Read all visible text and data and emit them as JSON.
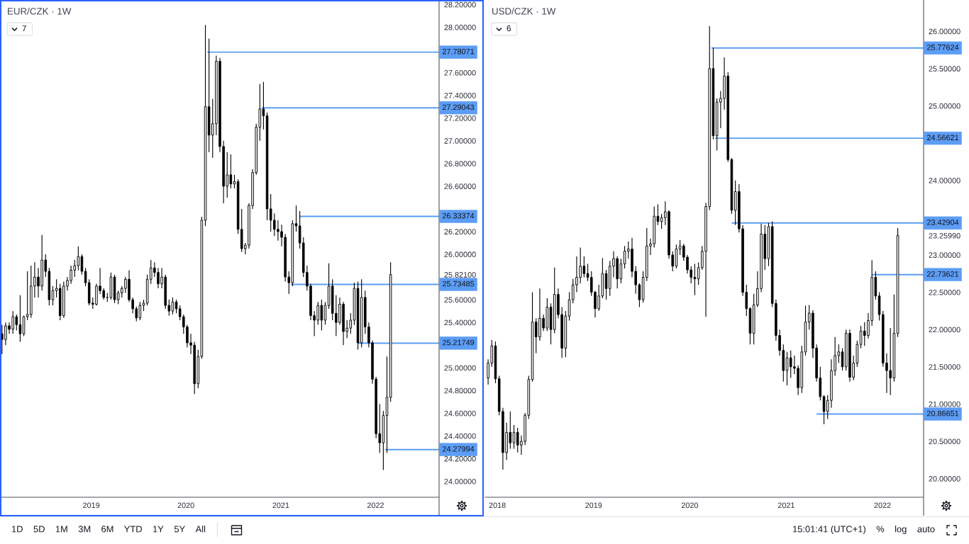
{
  "chart_data": [
    {
      "type": "candlestick",
      "title": "EUR/CZK · 1W",
      "annotations": [
        "7"
      ],
      "color": "#000000",
      "x": [
        "2018-01-22",
        "2018-02-05",
        "2018-02-19",
        "2018-03-05",
        "2018-03-19",
        "2018-04-02",
        "2018-04-16",
        "2018-04-30",
        "2018-05-14",
        "2018-05-28",
        "2018-06-11",
        "2018-06-25",
        "2018-07-09",
        "2018-07-23",
        "2018-08-06",
        "2018-08-20",
        "2018-09-03",
        "2018-09-17",
        "2018-10-01",
        "2018-10-15",
        "2018-10-29",
        "2018-11-12",
        "2018-11-26",
        "2018-12-10",
        "2018-12-24",
        "2019-01-07",
        "2019-01-21",
        "2019-02-04",
        "2019-02-18",
        "2019-03-04",
        "2019-03-18",
        "2019-04-01",
        "2019-04-15",
        "2019-04-29",
        "2019-05-13",
        "2019-05-27",
        "2019-06-10",
        "2019-06-24",
        "2019-07-08",
        "2019-07-22",
        "2019-08-05",
        "2019-08-19",
        "2019-09-02",
        "2019-09-16",
        "2019-09-30",
        "2019-10-14",
        "2019-10-28",
        "2019-11-11",
        "2019-11-25",
        "2019-12-09",
        "2019-12-23",
        "2020-01-06",
        "2020-01-20",
        "2020-02-03",
        "2020-02-17",
        "2020-03-02",
        "2020-03-16",
        "2020-03-30",
        "2020-04-13",
        "2020-04-27",
        "2020-05-11",
        "2020-05-25",
        "2020-06-08",
        "2020-06-22",
        "2020-07-06",
        "2020-07-20",
        "2020-08-03",
        "2020-08-17",
        "2020-08-31",
        "2020-09-14",
        "2020-09-28",
        "2020-10-12",
        "2020-10-26",
        "2020-11-09",
        "2020-11-23",
        "2020-12-07",
        "2020-12-21",
        "2021-01-04",
        "2021-01-18",
        "2021-02-01",
        "2021-02-15",
        "2021-03-01",
        "2021-03-15",
        "2021-03-29",
        "2021-04-12",
        "2021-04-26",
        "2021-05-10",
        "2021-05-24",
        "2021-06-07",
        "2021-06-21",
        "2021-07-05",
        "2021-07-19",
        "2021-08-02",
        "2021-08-16",
        "2021-08-30",
        "2021-09-13",
        "2021-09-27",
        "2021-10-11",
        "2021-10-25",
        "2021-11-08",
        "2021-11-22",
        "2021-12-06",
        "2021-12-20",
        "2022-01-03",
        "2022-01-17",
        "2022-01-31",
        "2022-02-14",
        "2022-02-28"
      ],
      "ohlc": [
        [
          25.3,
          25.38,
          25.12,
          25.25
        ],
        [
          25.25,
          25.4,
          25.2,
          25.37
        ],
        [
          25.37,
          25.4,
          25.3,
          25.34
        ],
        [
          25.34,
          25.5,
          25.3,
          25.45
        ],
        [
          25.45,
          25.47,
          25.33,
          25.38
        ],
        [
          25.38,
          25.64,
          25.23,
          25.3
        ],
        [
          25.3,
          25.46,
          25.28,
          25.45
        ],
        [
          25.45,
          25.85,
          25.42,
          25.47
        ],
        [
          25.47,
          25.9,
          25.44,
          25.72
        ],
        [
          25.72,
          25.93,
          25.62,
          25.8
        ],
        [
          25.8,
          25.88,
          25.62,
          25.72
        ],
        [
          25.72,
          26.17,
          25.68,
          25.95
        ],
        [
          25.95,
          26.0,
          25.8,
          25.85
        ],
        [
          25.85,
          25.88,
          25.55,
          25.6
        ],
        [
          25.6,
          25.72,
          25.55,
          25.68
        ],
        [
          25.68,
          25.78,
          25.62,
          25.7
        ],
        [
          25.7,
          25.74,
          25.42,
          25.46
        ],
        [
          25.46,
          25.76,
          25.44,
          25.72
        ],
        [
          25.72,
          25.8,
          25.68,
          25.77
        ],
        [
          25.77,
          25.9,
          25.74,
          25.86
        ],
        [
          25.86,
          25.95,
          25.8,
          25.9
        ],
        [
          25.9,
          26.07,
          25.86,
          25.98
        ],
        [
          25.98,
          26.0,
          25.82,
          25.85
        ],
        [
          25.85,
          25.88,
          25.72,
          25.75
        ],
        [
          25.75,
          25.78,
          25.55,
          25.57
        ],
        [
          25.57,
          25.62,
          25.52,
          25.56
        ],
        [
          25.56,
          25.74,
          25.55,
          25.72
        ],
        [
          25.72,
          25.88,
          25.65,
          25.68
        ],
        [
          25.68,
          25.7,
          25.6,
          25.62
        ],
        [
          25.62,
          25.66,
          25.58,
          25.62
        ],
        [
          25.62,
          25.84,
          25.6,
          25.8
        ],
        [
          25.8,
          25.82,
          25.57,
          25.6
        ],
        [
          25.6,
          25.68,
          25.56,
          25.66
        ],
        [
          25.66,
          25.72,
          25.62,
          25.7
        ],
        [
          25.7,
          25.8,
          25.66,
          25.78
        ],
        [
          25.78,
          25.86,
          25.58,
          25.6
        ],
        [
          25.6,
          25.62,
          25.48,
          25.52
        ],
        [
          25.52,
          25.54,
          25.41,
          25.44
        ],
        [
          25.44,
          25.58,
          25.42,
          25.55
        ],
        [
          25.55,
          25.6,
          25.5,
          25.57
        ],
        [
          25.57,
          25.82,
          25.55,
          25.78
        ],
        [
          25.78,
          25.95,
          25.74,
          25.88
        ],
        [
          25.88,
          25.93,
          25.8,
          25.84
        ],
        [
          25.84,
          25.88,
          25.7,
          25.74
        ],
        [
          25.74,
          25.88,
          25.7,
          25.8
        ],
        [
          25.8,
          25.82,
          25.52,
          25.55
        ],
        [
          25.55,
          25.6,
          25.46,
          25.5
        ],
        [
          25.5,
          25.62,
          25.47,
          25.58
        ],
        [
          25.58,
          25.6,
          25.48,
          25.52
        ],
        [
          25.52,
          25.55,
          25.42,
          25.45
        ],
        [
          25.45,
          25.47,
          25.3,
          25.36
        ],
        [
          25.36,
          25.38,
          25.18,
          25.22
        ],
        [
          25.22,
          25.3,
          25.12,
          25.2
        ],
        [
          25.2,
          25.23,
          24.77,
          24.86
        ],
        [
          24.86,
          25.16,
          24.82,
          25.1
        ],
        [
          25.1,
          26.33,
          25.08,
          26.3
        ],
        [
          26.3,
          28.02,
          26.25,
          27.3
        ],
        [
          27.3,
          27.9,
          26.9,
          27.05
        ],
        [
          27.05,
          27.37,
          26.85,
          27.15
        ],
        [
          27.15,
          27.75,
          27.05,
          27.7
        ],
        [
          27.7,
          27.73,
          26.9,
          26.95
        ],
        [
          26.95,
          27.0,
          26.45,
          26.6
        ],
        [
          26.6,
          26.9,
          26.5,
          26.7
        ],
        [
          26.7,
          26.88,
          26.58,
          26.62
        ],
        [
          26.62,
          26.7,
          26.58,
          26.64
        ],
        [
          26.64,
          26.66,
          26.18,
          26.22
        ],
        [
          26.22,
          26.4,
          26.02,
          26.05
        ],
        [
          26.05,
          26.1,
          26.0,
          26.08
        ],
        [
          26.08,
          26.45,
          26.05,
          26.43
        ],
        [
          26.43,
          26.75,
          26.4,
          26.72
        ],
        [
          26.72,
          27.15,
          26.7,
          27.12
        ],
        [
          27.12,
          27.5,
          27.0,
          27.28
        ],
        [
          27.28,
          27.52,
          27.1,
          27.22
        ],
        [
          27.22,
          27.25,
          26.3,
          26.4
        ],
        [
          26.4,
          26.53,
          26.2,
          26.3
        ],
        [
          26.3,
          26.36,
          26.16,
          26.22
        ],
        [
          26.22,
          26.3,
          26.12,
          26.2
        ],
        [
          26.2,
          26.26,
          26.07,
          26.15
        ],
        [
          26.15,
          26.18,
          25.76,
          25.8
        ],
        [
          25.8,
          25.85,
          25.65,
          25.75
        ],
        [
          25.75,
          26.3,
          25.72,
          26.27
        ],
        [
          26.27,
          26.43,
          26.2,
          26.25
        ],
        [
          26.25,
          26.38,
          26.05,
          26.1
        ],
        [
          26.1,
          26.15,
          25.8,
          25.84
        ],
        [
          25.84,
          25.9,
          25.68,
          25.72
        ],
        [
          25.72,
          25.74,
          25.42,
          25.46
        ],
        [
          25.46,
          25.5,
          25.28,
          25.42
        ],
        [
          25.42,
          25.58,
          25.38,
          25.55
        ],
        [
          25.55,
          25.6,
          25.33,
          25.42
        ],
        [
          25.42,
          25.58,
          25.38,
          25.55
        ],
        [
          25.55,
          25.92,
          25.52,
          25.72
        ],
        [
          25.72,
          25.78,
          25.42,
          25.48
        ],
        [
          25.48,
          25.64,
          25.28,
          25.4
        ],
        [
          25.4,
          25.62,
          25.38,
          25.56
        ],
        [
          25.56,
          25.58,
          25.2,
          25.32
        ],
        [
          25.32,
          25.42,
          25.26,
          25.35
        ],
        [
          25.35,
          25.48,
          25.3,
          25.42
        ],
        [
          25.42,
          25.75,
          25.38,
          25.7
        ],
        [
          25.7,
          25.76,
          25.16,
          25.22
        ],
        [
          25.22,
          25.78,
          25.18,
          25.62
        ],
        [
          25.62,
          25.68,
          25.3,
          25.36
        ],
        [
          25.36,
          25.4,
          25.18,
          25.22
        ],
        [
          25.22,
          25.24,
          24.86,
          24.9
        ],
        [
          24.9,
          24.92,
          24.38,
          24.42
        ],
        [
          24.42,
          24.68,
          24.25,
          24.34
        ],
        [
          24.34,
          24.62,
          24.1,
          24.58
        ],
        [
          24.58,
          25.1,
          24.25,
          24.74
        ],
        [
          24.74,
          25.93,
          24.7,
          25.821
        ]
      ],
      "series": [
        {
          "type": "line",
          "x": [
            "2020-03-23",
            "2022-09-03"
          ],
          "values": [
            27.78071,
            27.78071
          ],
          "value_labels": [
            null,
            "27.78071"
          ],
          "color": "#5c9df5"
        },
        {
          "type": "line",
          "x": [
            "2020-10-19",
            "2022-09-03"
          ],
          "values": [
            27.29043,
            27.29043
          ],
          "value_labels": [
            null,
            "27.29043"
          ],
          "color": "#5c9df5"
        },
        {
          "type": "line",
          "x": [
            "2021-03-15",
            "2022-09-03"
          ],
          "values": [
            26.33374,
            26.33374
          ],
          "value_labels": [
            null,
            "26.33374"
          ],
          "color": "#5c9df5"
        },
        {
          "type": "line",
          "x": [
            "2021-02-08",
            "2022-09-03"
          ],
          "values": [
            25.73485,
            25.73485
          ],
          "value_labels": [
            null,
            "25.73485"
          ],
          "color": "#5c9df5"
        },
        {
          "type": "line",
          "x": [
            "2021-10-25",
            "2022-09-03"
          ],
          "values": [
            25.21749,
            25.21749
          ],
          "value_labels": [
            null,
            "25.21749"
          ],
          "color": "#5c9df5"
        },
        {
          "type": "line",
          "x": [
            "2022-02-07",
            "2022-09-03"
          ],
          "values": [
            24.27994,
            24.27994
          ],
          "value_labels": [
            null,
            "24.27994"
          ],
          "color": "#5c9df5"
        }
      ],
      "xlim": [
        "2018-01-17",
        "2022-09-03"
      ],
      "xticks": [
        "2019",
        "2020",
        "2021",
        "2022"
      ],
      "ylim": [
        23.86,
        28.24
      ],
      "yticks": [
        {
          "value": 24,
          "label": "24.00000"
        },
        {
          "value": 24.2,
          "label": "24.20000"
        },
        {
          "value": 24.4,
          "label": "24.40000"
        },
        {
          "value": 24.6,
          "label": "24.60000"
        },
        {
          "value": 24.8,
          "label": "24.80000"
        },
        {
          "value": 25,
          "label": "25.00000"
        },
        {
          "value": 25.4,
          "label": "25.40000"
        },
        {
          "value": 25.6,
          "label": "25.60000"
        },
        {
          "value": 25.821,
          "label": "25.82100"
        },
        {
          "value": 26,
          "label": "26.00000"
        },
        {
          "value": 26.2,
          "label": "26.20000"
        },
        {
          "value": 26.6,
          "label": "26.60000"
        },
        {
          "value": 26.8,
          "label": "26.80000"
        },
        {
          "value": 27,
          "label": "27.00000"
        },
        {
          "value": 27.2,
          "label": "27.20000"
        },
        {
          "value": 27.4,
          "label": "27.40000"
        },
        {
          "value": 27.6,
          "label": "27.60000"
        },
        {
          "value": 28,
          "label": "28.00000"
        },
        {
          "value": 28.2,
          "label": "28.20000"
        }
      ]
    },
    {
      "type": "candlestick",
      "title": "USD/CZK · 1W",
      "annotations": [
        "6"
      ],
      "color": "#000000",
      "x": [
        "2017-11-27",
        "2017-12-11",
        "2017-12-25",
        "2018-01-08",
        "2018-01-22",
        "2018-02-05",
        "2018-02-19",
        "2018-03-05",
        "2018-03-19",
        "2018-04-02",
        "2018-04-16",
        "2018-04-30",
        "2018-05-14",
        "2018-05-28",
        "2018-06-11",
        "2018-06-25",
        "2018-07-09",
        "2018-07-23",
        "2018-08-06",
        "2018-08-20",
        "2018-09-03",
        "2018-09-17",
        "2018-10-01",
        "2018-10-15",
        "2018-10-29",
        "2018-11-12",
        "2018-11-26",
        "2018-12-10",
        "2018-12-24",
        "2019-01-07",
        "2019-01-21",
        "2019-02-04",
        "2019-02-18",
        "2019-03-04",
        "2019-03-18",
        "2019-04-01",
        "2019-04-15",
        "2019-04-29",
        "2019-05-13",
        "2019-05-27",
        "2019-06-10",
        "2019-06-24",
        "2019-07-08",
        "2019-07-22",
        "2019-08-05",
        "2019-08-19",
        "2019-09-02",
        "2019-09-16",
        "2019-09-30",
        "2019-10-14",
        "2019-10-28",
        "2019-11-11",
        "2019-11-25",
        "2019-12-09",
        "2019-12-23",
        "2020-01-06",
        "2020-01-20",
        "2020-02-03",
        "2020-02-17",
        "2020-03-02",
        "2020-03-16",
        "2020-03-30",
        "2020-04-13",
        "2020-04-27",
        "2020-05-11",
        "2020-05-25",
        "2020-06-08",
        "2020-06-22",
        "2020-07-06",
        "2020-07-20",
        "2020-08-03",
        "2020-08-17",
        "2020-08-31",
        "2020-09-14",
        "2020-09-28",
        "2020-10-12",
        "2020-10-26",
        "2020-11-09",
        "2020-11-23",
        "2020-12-07",
        "2020-12-21",
        "2021-01-04",
        "2021-01-18",
        "2021-02-01",
        "2021-02-15",
        "2021-03-01",
        "2021-03-15",
        "2021-03-29",
        "2021-04-12",
        "2021-04-26",
        "2021-05-10",
        "2021-05-24",
        "2021-06-07",
        "2021-06-21",
        "2021-07-05",
        "2021-07-19",
        "2021-08-02",
        "2021-08-16",
        "2021-08-30",
        "2021-09-13",
        "2021-09-27",
        "2021-10-11",
        "2021-10-25",
        "2021-11-08",
        "2021-11-22",
        "2021-12-06",
        "2021-12-20",
        "2022-01-03",
        "2022-01-17",
        "2022-01-31",
        "2022-02-14",
        "2022-02-28"
      ],
      "ohlc": [
        [
          21.35,
          21.6,
          21.26,
          21.55
        ],
        [
          21.55,
          21.86,
          21.5,
          21.78
        ],
        [
          21.78,
          21.84,
          21.28,
          21.34
        ],
        [
          21.34,
          21.38,
          20.85,
          20.9
        ],
        [
          20.9,
          20.95,
          20.12,
          20.35
        ],
        [
          20.35,
          20.75,
          20.25,
          20.62
        ],
        [
          20.62,
          20.9,
          20.4,
          20.48
        ],
        [
          20.48,
          20.72,
          20.4,
          20.62
        ],
        [
          20.62,
          20.68,
          20.35,
          20.45
        ],
        [
          20.45,
          20.58,
          20.32,
          20.5
        ],
        [
          20.5,
          20.88,
          20.45,
          20.85
        ],
        [
          20.85,
          21.38,
          20.8,
          21.33
        ],
        [
          21.33,
          22.5,
          21.3,
          22.1
        ],
        [
          22.1,
          22.15,
          21.68,
          21.9
        ],
        [
          21.9,
          22.55,
          21.85,
          22.15
        ],
        [
          22.15,
          22.2,
          21.98,
          22.02
        ],
        [
          22.02,
          22.42,
          21.98,
          22.3
        ],
        [
          22.3,
          22.35,
          21.8,
          22.0
        ],
        [
          22.0,
          22.83,
          21.95,
          22.47
        ],
        [
          22.47,
          22.55,
          22.15,
          22.2
        ],
        [
          22.2,
          22.3,
          21.62,
          21.75
        ],
        [
          21.75,
          22.25,
          21.63,
          22.18
        ],
        [
          22.18,
          22.5,
          22.12,
          22.4
        ],
        [
          22.4,
          22.68,
          22.35,
          22.6
        ],
        [
          22.6,
          22.98,
          22.5,
          22.7
        ],
        [
          22.7,
          23.1,
          22.62,
          22.85
        ],
        [
          22.85,
          22.98,
          22.7,
          22.75
        ],
        [
          22.75,
          22.88,
          22.65,
          22.7
        ],
        [
          22.7,
          22.78,
          22.45,
          22.5
        ],
        [
          22.5,
          22.52,
          22.16,
          22.28
        ],
        [
          22.28,
          22.6,
          22.25,
          22.45
        ],
        [
          22.45,
          22.96,
          22.42,
          22.75
        ],
        [
          22.75,
          22.8,
          22.4,
          22.55
        ],
        [
          22.55,
          22.92,
          22.45,
          22.85
        ],
        [
          22.85,
          23.05,
          22.7,
          22.95
        ],
        [
          22.95,
          22.98,
          22.55,
          22.68
        ],
        [
          22.68,
          22.95,
          22.62,
          22.88
        ],
        [
          22.88,
          23.12,
          22.82,
          23.05
        ],
        [
          23.05,
          23.18,
          22.95,
          23.08
        ],
        [
          23.08,
          23.23,
          22.7,
          22.78
        ],
        [
          22.78,
          22.85,
          22.48,
          22.6
        ],
        [
          22.6,
          22.62,
          22.3,
          22.4
        ],
        [
          22.4,
          22.78,
          22.36,
          22.7
        ],
        [
          22.7,
          23.36,
          22.65,
          23.12
        ],
        [
          23.12,
          23.22,
          23.0,
          23.15
        ],
        [
          23.15,
          23.65,
          23.1,
          23.52
        ],
        [
          23.52,
          23.68,
          23.4,
          23.45
        ],
        [
          23.45,
          23.55,
          23.35,
          23.5
        ],
        [
          23.5,
          23.72,
          23.4,
          23.58
        ],
        [
          23.58,
          23.6,
          22.95,
          23.0
        ],
        [
          23.0,
          23.05,
          22.78,
          22.85
        ],
        [
          22.85,
          23.14,
          22.82,
          23.08
        ],
        [
          23.08,
          23.2,
          23.0,
          23.12
        ],
        [
          23.12,
          23.15,
          22.92,
          22.97
        ],
        [
          22.97,
          23.0,
          22.75,
          22.8
        ],
        [
          22.8,
          22.85,
          22.62,
          22.7
        ],
        [
          22.7,
          22.88,
          22.46,
          22.68
        ],
        [
          22.68,
          22.9,
          22.6,
          22.83
        ],
        [
          22.83,
          23.12,
          22.8,
          23.05
        ],
        [
          23.05,
          23.7,
          22.17,
          23.65
        ],
        [
          23.65,
          26.07,
          23.6,
          25.5
        ],
        [
          25.5,
          25.78,
          24.55,
          24.6
        ],
        [
          24.6,
          25.1,
          24.4,
          25.05
        ],
        [
          25.05,
          25.2,
          24.7,
          25.1
        ],
        [
          25.1,
          25.65,
          24.95,
          25.4
        ],
        [
          25.4,
          25.45,
          24.25,
          24.28
        ],
        [
          24.28,
          24.3,
          23.55,
          23.6
        ],
        [
          23.6,
          24.0,
          23.4,
          23.85
        ],
        [
          23.85,
          23.95,
          23.3,
          23.35
        ],
        [
          23.35,
          23.4,
          22.45,
          22.5
        ],
        [
          22.5,
          22.6,
          22.18,
          22.28
        ],
        [
          22.28,
          22.3,
          21.8,
          21.95
        ],
        [
          21.95,
          22.48,
          21.8,
          22.33
        ],
        [
          22.33,
          22.78,
          22.3,
          22.55
        ],
        [
          22.55,
          23.42,
          22.5,
          23.28
        ],
        [
          23.28,
          23.4,
          22.8,
          22.95
        ],
        [
          22.95,
          23.43,
          22.85,
          23.38
        ],
        [
          23.38,
          23.45,
          22.3,
          22.35
        ],
        [
          22.35,
          22.4,
          21.85,
          21.92
        ],
        [
          21.92,
          22.0,
          21.65,
          21.72
        ],
        [
          21.72,
          21.8,
          21.3,
          21.45
        ],
        [
          21.45,
          21.7,
          21.25,
          21.62
        ],
        [
          21.62,
          21.72,
          21.35,
          21.5
        ],
        [
          21.5,
          21.65,
          21.4,
          21.48
        ],
        [
          21.48,
          21.52,
          21.12,
          21.22
        ],
        [
          21.22,
          21.78,
          21.15,
          21.7
        ],
        [
          21.7,
          22.32,
          21.65,
          22.1
        ],
        [
          22.1,
          22.33,
          22.0,
          22.22
        ],
        [
          22.22,
          22.26,
          21.62,
          21.75
        ],
        [
          21.75,
          21.8,
          21.3,
          21.35
        ],
        [
          21.35,
          21.5,
          21.05,
          21.1
        ],
        [
          21.1,
          21.12,
          20.73,
          20.9
        ],
        [
          20.9,
          21.12,
          20.8,
          21.05
        ],
        [
          21.05,
          21.6,
          20.95,
          21.45
        ],
        [
          21.45,
          21.9,
          21.38,
          21.65
        ],
        [
          21.65,
          21.8,
          21.55,
          21.7
        ],
        [
          21.7,
          21.75,
          21.45,
          21.5
        ],
        [
          21.5,
          22.0,
          21.45,
          21.95
        ],
        [
          21.95,
          22.0,
          21.3,
          21.36
        ],
        [
          21.36,
          21.65,
          21.32,
          21.55
        ],
        [
          21.55,
          21.85,
          21.5,
          21.8
        ],
        [
          21.8,
          22.05,
          21.75,
          21.98
        ],
        [
          21.98,
          22.1,
          21.78,
          21.92
        ],
        [
          21.92,
          22.22,
          21.88,
          22.12
        ],
        [
          22.12,
          22.93,
          22.05,
          22.7
        ],
        [
          22.7,
          22.78,
          22.4,
          22.45
        ],
        [
          22.45,
          22.5,
          22.12,
          22.2
        ],
        [
          22.2,
          22.25,
          21.5,
          21.55
        ],
        [
          21.55,
          21.68,
          21.15,
          21.45
        ],
        [
          21.45,
          22.02,
          21.12,
          21.35
        ],
        [
          21.35,
          22.47,
          21.3,
          21.95
        ],
        [
          21.95,
          23.36,
          21.9,
          23.2599
        ]
      ],
      "series": [
        {
          "type": "line",
          "x": [
            "2020-03-23",
            "2022-06-06"
          ],
          "values": [
            25.77624,
            25.77624
          ],
          "value_labels": [
            null,
            "25.77624"
          ],
          "color": "#5c9df5"
        },
        {
          "type": "line",
          "x": [
            "2020-04-06",
            "2022-06-06"
          ],
          "values": [
            24.56621,
            24.56621
          ],
          "value_labels": [
            null,
            "24.56621"
          ],
          "color": "#5c9df5"
        },
        {
          "type": "line",
          "x": [
            "2020-06-08",
            "2022-06-06"
          ],
          "values": [
            23.42904,
            23.42904
          ],
          "value_labels": [
            null,
            "23.42904"
          ],
          "color": "#5c9df5"
        },
        {
          "type": "line",
          "x": [
            "2021-11-22",
            "2022-06-06"
          ],
          "values": [
            22.73621,
            22.73621
          ],
          "value_labels": [
            null,
            "22.73621"
          ],
          "color": "#5c9df5"
        },
        {
          "type": "line",
          "x": [
            "2021-04-26",
            "2022-06-06"
          ],
          "values": [
            20.86651,
            20.86651
          ],
          "value_labels": [
            null,
            "20.86651"
          ],
          "color": "#5c9df5"
        }
      ],
      "xlim": [
        "2017-11-16",
        "2022-06-06"
      ],
      "xticks": [
        "2018",
        "2019",
        "2020",
        "2021",
        "2022"
      ],
      "ylim": [
        19.75,
        26.42
      ],
      "yticks": [
        {
          "value": 20,
          "label": "20.00000"
        },
        {
          "value": 20.5,
          "label": "20.50000"
        },
        {
          "value": 21,
          "label": "21.00000"
        },
        {
          "value": 21.5,
          "label": "21.50000"
        },
        {
          "value": 22,
          "label": "22.00000"
        },
        {
          "value": 22.5,
          "label": "22.50000"
        },
        {
          "value": 23,
          "label": "23.00000"
        },
        {
          "value": 23.2599,
          "label": "23.25990"
        },
        {
          "value": 24,
          "label": "24.00000"
        },
        {
          "value": 25,
          "label": "25.00000"
        },
        {
          "value": 25.5,
          "label": "25.50000"
        },
        {
          "value": 26,
          "label": "26.00000"
        }
      ]
    },
    {
      "type": "other",
      "annotations": [
        "1D",
        "5D",
        "1M",
        "3M",
        "6M",
        "YTD",
        "1Y",
        "5Y",
        "All"
      ]
    },
    {
      "type": "other",
      "annotations": [
        "15:01:41 (UTC+1)",
        "%",
        "log",
        "auto"
      ]
    }
  ]
}
